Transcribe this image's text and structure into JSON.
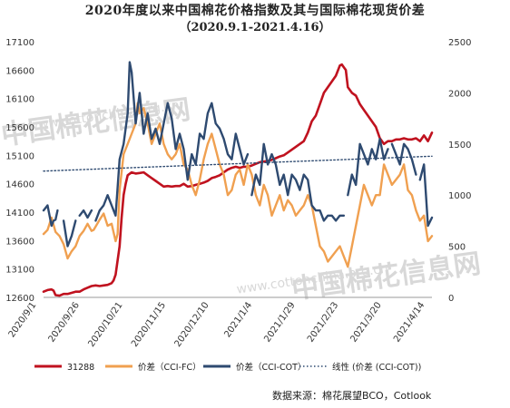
{
  "chart_data": {
    "type": "line",
    "title": "2020年度以来中国棉花价格指数及其与国际棉花现货价差",
    "subtitle": "（2020.9.1-2021.4.16）",
    "x_tick_labels": [
      "2020/9/1",
      "2020/9/26",
      "2020/10/21",
      "2020/11/15",
      "2020/12/10",
      "2021/1/4",
      "2021/1/29",
      "2021/2/23",
      "2021/3/20",
      "2021/4/14"
    ],
    "y_left": {
      "min": 12600,
      "max": 17100,
      "ticks": [
        12600,
        13100,
        13600,
        14100,
        14600,
        15100,
        15600,
        16100,
        16600,
        17100
      ]
    },
    "y_right": {
      "min": 0,
      "max": 2500,
      "ticks": [
        0,
        500,
        1000,
        1500,
        2000,
        2500
      ]
    },
    "grid": false,
    "legend_position": "bottom",
    "series": [
      {
        "name": "31288",
        "axis": "left",
        "color": "#c0121f",
        "points": [
          [
            0,
            12700
          ],
          [
            2,
            12730
          ],
          [
            4,
            12740
          ],
          [
            5,
            12720
          ],
          [
            6,
            12640
          ],
          [
            8,
            12630
          ],
          [
            10,
            12660
          ],
          [
            12,
            12660
          ],
          [
            14,
            12680
          ],
          [
            16,
            12700
          ],
          [
            18,
            12700
          ],
          [
            20,
            12740
          ],
          [
            22,
            12770
          ],
          [
            24,
            12800
          ],
          [
            26,
            12810
          ],
          [
            28,
            12800
          ],
          [
            30,
            12810
          ],
          [
            32,
            12820
          ],
          [
            34,
            12850
          ],
          [
            35,
            12900
          ],
          [
            36,
            13000
          ],
          [
            38,
            13500
          ],
          [
            39,
            14000
          ],
          [
            40,
            14400
          ],
          [
            41,
            14600
          ],
          [
            42,
            14750
          ],
          [
            44,
            14800
          ],
          [
            46,
            14780
          ],
          [
            48,
            14790
          ],
          [
            50,
            14800
          ],
          [
            52,
            14750
          ],
          [
            54,
            14700
          ],
          [
            56,
            14650
          ],
          [
            58,
            14600
          ],
          [
            60,
            14550
          ],
          [
            62,
            14560
          ],
          [
            64,
            14550
          ],
          [
            66,
            14560
          ],
          [
            68,
            14560
          ],
          [
            70,
            14600
          ],
          [
            72,
            14550
          ],
          [
            74,
            14560
          ],
          [
            76,
            14580
          ],
          [
            78,
            14600
          ],
          [
            80,
            14620
          ],
          [
            82,
            14650
          ],
          [
            84,
            14700
          ],
          [
            86,
            14720
          ],
          [
            88,
            14750
          ],
          [
            90,
            14800
          ],
          [
            92,
            14850
          ],
          [
            94,
            14880
          ],
          [
            96,
            14900
          ],
          [
            98,
            14880
          ],
          [
            100,
            14900
          ],
          [
            102,
            14900
          ],
          [
            104,
            14920
          ],
          [
            106,
            14950
          ],
          [
            108,
            14980
          ],
          [
            110,
            14990
          ],
          [
            112,
            15000
          ],
          [
            114,
            15020
          ],
          [
            116,
            15050
          ],
          [
            118,
            15080
          ],
          [
            120,
            15100
          ],
          [
            122,
            15150
          ],
          [
            124,
            15200
          ],
          [
            126,
            15250
          ],
          [
            128,
            15300
          ],
          [
            130,
            15350
          ],
          [
            132,
            15500
          ],
          [
            134,
            15700
          ],
          [
            136,
            15800
          ],
          [
            138,
            16000
          ],
          [
            140,
            16200
          ],
          [
            142,
            16300
          ],
          [
            144,
            16400
          ],
          [
            146,
            16500
          ],
          [
            148,
            16680
          ],
          [
            149,
            16700
          ],
          [
            150,
            16650
          ],
          [
            151,
            16600
          ],
          [
            152,
            16300
          ],
          [
            154,
            16200
          ],
          [
            156,
            16150
          ],
          [
            158,
            16000
          ],
          [
            160,
            15900
          ],
          [
            162,
            15800
          ],
          [
            164,
            15700
          ],
          [
            166,
            15600
          ],
          [
            168,
            15400
          ],
          [
            170,
            15300
          ],
          [
            172,
            15350
          ],
          [
            174,
            15350
          ],
          [
            176,
            15380
          ],
          [
            178,
            15380
          ],
          [
            180,
            15400
          ],
          [
            182,
            15380
          ],
          [
            184,
            15380
          ],
          [
            186,
            15400
          ],
          [
            188,
            15350
          ],
          [
            190,
            15450
          ],
          [
            192,
            15350
          ],
          [
            194,
            15500
          ]
        ]
      },
      {
        "name": "价差（CCI-FC）",
        "axis": "right",
        "color": "#f0a050",
        "points": [
          [
            0,
            620
          ],
          [
            2,
            660
          ],
          [
            4,
            780
          ],
          [
            6,
            640
          ],
          [
            8,
            600
          ],
          [
            10,
            520
          ],
          [
            12,
            380
          ],
          [
            14,
            450
          ],
          [
            16,
            500
          ],
          [
            18,
            600
          ],
          [
            20,
            650
          ],
          [
            22,
            720
          ],
          [
            24,
            650
          ],
          [
            25,
            660
          ],
          [
            28,
            760
          ],
          [
            30,
            820
          ],
          [
            32,
            700
          ],
          [
            34,
            720
          ],
          [
            36,
            550
          ],
          [
            37,
            620
          ],
          [
            38,
            1050
          ],
          [
            40,
            1400
          ],
          [
            42,
            1500
          ],
          [
            44,
            1600
          ],
          [
            46,
            1700
          ],
          [
            47,
            1900
          ],
          [
            48,
            1800
          ],
          [
            50,
            1850
          ],
          [
            52,
            1700
          ],
          [
            54,
            1500
          ],
          [
            56,
            1600
          ],
          [
            58,
            1700
          ],
          [
            60,
            1500
          ],
          [
            62,
            1400
          ],
          [
            64,
            1350
          ],
          [
            66,
            1400
          ],
          [
            68,
            1500
          ],
          [
            70,
            1300
          ],
          [
            72,
            1250
          ],
          [
            74,
            1100
          ],
          [
            76,
            1000
          ],
          [
            78,
            1150
          ],
          [
            80,
            1350
          ],
          [
            82,
            1500
          ],
          [
            84,
            1600
          ],
          [
            86,
            1450
          ],
          [
            88,
            1300
          ],
          [
            90,
            1200
          ],
          [
            92,
            1000
          ],
          [
            94,
            1050
          ],
          [
            96,
            1200
          ],
          [
            98,
            1250
          ],
          [
            100,
            1100
          ],
          [
            102,
            1300
          ],
          [
            104,
            1200
          ],
          [
            106,
            1000
          ],
          [
            108,
            900
          ],
          [
            110,
            1100
          ],
          [
            112,
            1000
          ],
          [
            114,
            800
          ],
          [
            116,
            900
          ],
          [
            118,
            1000
          ],
          [
            120,
            850
          ],
          [
            122,
            950
          ],
          [
            124,
            900
          ],
          [
            126,
            800
          ],
          [
            128,
            850
          ],
          [
            130,
            900
          ],
          [
            132,
            1000
          ],
          [
            134,
            900
          ],
          [
            136,
            700
          ],
          [
            138,
            500
          ],
          [
            140,
            450
          ],
          [
            142,
            350
          ],
          [
            144,
            400
          ],
          [
            146,
            450
          ],
          [
            148,
            500
          ],
          [
            150,
            400
          ],
          [
            152,
            300
          ],
          [
            154,
            500
          ],
          [
            156,
            700
          ],
          [
            158,
            900
          ],
          [
            160,
            1100
          ],
          [
            162,
            1000
          ],
          [
            164,
            900
          ],
          [
            166,
            1000
          ],
          [
            168,
            1000
          ],
          [
            170,
            1300
          ],
          [
            172,
            1200
          ],
          [
            174,
            1100
          ],
          [
            176,
            1150
          ],
          [
            178,
            1200
          ],
          [
            180,
            1300
          ],
          [
            182,
            1050
          ],
          [
            184,
            1000
          ],
          [
            186,
            850
          ],
          [
            188,
            750
          ],
          [
            190,
            800
          ],
          [
            192,
            550
          ],
          [
            194,
            600
          ]
        ]
      },
      {
        "name": "价差（CCI-COT）",
        "axis": "right",
        "color": "#2e4a70",
        "gaps_after": [
          7,
          16,
          24,
          102,
          150,
          172,
          186
        ],
        "points": [
          [
            0,
            850
          ],
          [
            2,
            900
          ],
          [
            4,
            700
          ],
          [
            5,
            750
          ],
          [
            6,
            760
          ],
          [
            7,
            850
          ],
          [
            10,
            750
          ],
          [
            12,
            500
          ],
          [
            14,
            600
          ],
          [
            16,
            750
          ],
          [
            18,
            800
          ],
          [
            20,
            850
          ],
          [
            22,
            780
          ],
          [
            24,
            850
          ],
          [
            26,
            750
          ],
          [
            27,
            800
          ],
          [
            28,
            850
          ],
          [
            30,
            900
          ],
          [
            32,
            1000
          ],
          [
            34,
            900
          ],
          [
            36,
            800
          ],
          [
            38,
            1350
          ],
          [
            40,
            1500
          ],
          [
            42,
            1800
          ],
          [
            43,
            2300
          ],
          [
            44,
            2200
          ],
          [
            46,
            1700
          ],
          [
            48,
            2000
          ],
          [
            50,
            1600
          ],
          [
            52,
            1800
          ],
          [
            54,
            1550
          ],
          [
            56,
            1650
          ],
          [
            58,
            1500
          ],
          [
            60,
            1700
          ],
          [
            62,
            1900
          ],
          [
            64,
            1750
          ],
          [
            66,
            1450
          ],
          [
            68,
            1600
          ],
          [
            70,
            1450
          ],
          [
            72,
            1150
          ],
          [
            74,
            1400
          ],
          [
            76,
            1300
          ],
          [
            78,
            1600
          ],
          [
            80,
            1550
          ],
          [
            82,
            1800
          ],
          [
            84,
            1900
          ],
          [
            86,
            1700
          ],
          [
            88,
            1650
          ],
          [
            90,
            1550
          ],
          [
            92,
            1400
          ],
          [
            94,
            1350
          ],
          [
            96,
            1600
          ],
          [
            98,
            1450
          ],
          [
            100,
            1300
          ],
          [
            102,
            1400
          ],
          [
            104,
            1000
          ],
          [
            106,
            1200
          ],
          [
            108,
            1100
          ],
          [
            110,
            1500
          ],
          [
            112,
            1300
          ],
          [
            114,
            1400
          ],
          [
            116,
            1300
          ],
          [
            118,
            1100
          ],
          [
            120,
            1200
          ],
          [
            122,
            1000
          ],
          [
            124,
            1200
          ],
          [
            126,
            1150
          ],
          [
            128,
            1050
          ],
          [
            130,
            1200
          ],
          [
            132,
            1150
          ],
          [
            134,
            900
          ],
          [
            136,
            850
          ],
          [
            138,
            850
          ],
          [
            140,
            750
          ],
          [
            142,
            800
          ],
          [
            144,
            800
          ],
          [
            146,
            750
          ],
          [
            148,
            800
          ],
          [
            150,
            800
          ],
          [
            152,
            1000
          ],
          [
            154,
            1200
          ],
          [
            156,
            1100
          ],
          [
            158,
            1500
          ],
          [
            160,
            1400
          ],
          [
            162,
            1300
          ],
          [
            164,
            1450
          ],
          [
            166,
            1350
          ],
          [
            168,
            1550
          ],
          [
            170,
            1350
          ],
          [
            172,
            1450
          ],
          [
            174,
            1500
          ],
          [
            176,
            1400
          ],
          [
            178,
            1300
          ],
          [
            180,
            1500
          ],
          [
            182,
            1450
          ],
          [
            184,
            1350
          ],
          [
            186,
            1200
          ],
          [
            188,
            1150
          ],
          [
            190,
            1300
          ],
          [
            192,
            700
          ],
          [
            194,
            780
          ]
        ]
      },
      {
        "name": "线性 (价差 (CCI-COT))",
        "axis": "right",
        "color": "#2e4a70",
        "style": "dotted",
        "points": [
          [
            0,
            1235
          ],
          [
            194,
            1380
          ]
        ]
      }
    ]
  },
  "watermark": {
    "text_cn": "中国棉花信息网",
    "text_url": "www.cottonchina.org.cn"
  },
  "source": "数据来源：棉花展望BCO，Cotlook"
}
